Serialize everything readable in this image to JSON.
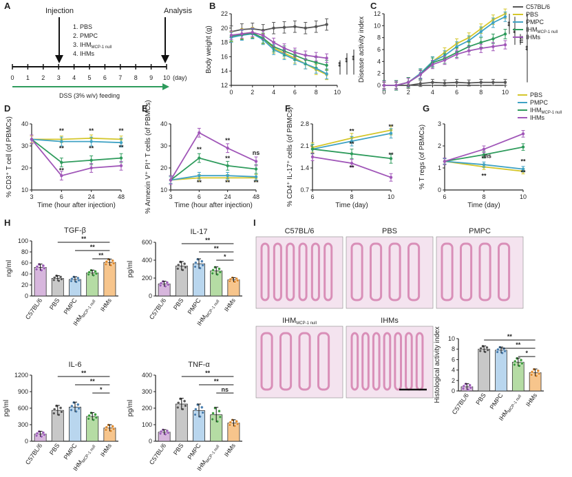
{
  "colors": {
    "C57BL/6": "#555555",
    "PBS": "#d4c62a",
    "PMPC": "#3fa2c4",
    "IHM": "#2e9b5c",
    "IHMs": "#a056b8",
    "bar_C57": "#d7b6dd",
    "bar_PBS": "#c8c8c8",
    "bar_PMPC": "#b9d6ee",
    "bar_IHM": "#b5dca4",
    "bar_IHMs": "#f7c58c",
    "dot_C57": "#9b59b6",
    "dot_PBS": "#555555",
    "dot_PMPC": "#4a7fb0",
    "dot_IHM": "#3a9b3a",
    "dot_IHMs": "#e08a2c",
    "schedule_text": "#3a4fa8",
    "dss_arrow": "#2e9b5c",
    "tissue": "#d98fb8"
  },
  "panelA": {
    "letter": "A",
    "injection": "Injection",
    "analysis": "Analysis",
    "groups": [
      "1.  PBS",
      "2.  PMPC",
      "3.  IHM",
      "4.  IHMs"
    ],
    "group3_sub": "MCP-1 null",
    "ticks": [
      "0",
      "1",
      "2",
      "3",
      "4",
      "5",
      "6",
      "7",
      "8",
      "9",
      "10"
    ],
    "unit": "(day)",
    "dss": "DSS (3% w/v) feeding"
  },
  "chart_data": [
    {
      "panel": "B",
      "type": "line",
      "xlabel": "",
      "ylabel": "Body weight (g)",
      "xlim": [
        0,
        10
      ],
      "ylim": [
        12,
        22
      ],
      "xticks": [
        "0",
        "2",
        "4",
        "6",
        "8",
        "10"
      ],
      "yticks": [
        "12",
        "14",
        "16",
        "18",
        "20",
        "22"
      ],
      "x": [
        0,
        1,
        2,
        3,
        4,
        5,
        6,
        7,
        8,
        9
      ],
      "series": [
        {
          "name": "C57BL/6",
          "color": "C57BL/6",
          "values": [
            19.5,
            19.8,
            19.9,
            19.7,
            20.0,
            20.1,
            20.2,
            20.0,
            20.2,
            20.5
          ],
          "err": 0.8
        },
        {
          "name": "PBS",
          "color": "PBS",
          "values": [
            18.8,
            19.2,
            19.4,
            18.5,
            17.2,
            16.5,
            15.8,
            15.0,
            14.2,
            13.5
          ],
          "err": 0.7
        },
        {
          "name": "PMPC",
          "color": "PMPC",
          "values": [
            18.7,
            19.0,
            19.2,
            18.4,
            17.0,
            16.3,
            15.6,
            15.0,
            14.4,
            13.6
          ],
          "err": 0.7
        },
        {
          "name": "IHM",
          "color": "IHM",
          "values": [
            18.9,
            19.1,
            19.3,
            18.6,
            17.4,
            16.8,
            16.2,
            15.6,
            15.2,
            14.8
          ],
          "err": 0.7
        },
        {
          "name": "IHMs",
          "color": "IHMs",
          "values": [
            19.0,
            19.2,
            19.4,
            19.0,
            18.0,
            17.2,
            16.6,
            16.2,
            16.0,
            15.8
          ],
          "err": 0.6
        }
      ],
      "sig": [
        "**",
        "**",
        "**"
      ]
    },
    {
      "panel": "C",
      "type": "line",
      "xlabel": "",
      "ylabel": "Disease activity index",
      "xlim": [
        0,
        10
      ],
      "ylim": [
        0,
        12
      ],
      "xticks": [
        "0",
        "2",
        "4",
        "6",
        "8",
        "10"
      ],
      "yticks": [
        "0",
        "2",
        "4",
        "6",
        "8",
        "10",
        "12"
      ],
      "x": [
        0,
        1,
        2,
        3,
        4,
        5,
        6,
        7,
        8,
        9,
        10
      ],
      "series": [
        {
          "name": "C57BL/6",
          "color": "C57BL/6",
          "values": [
            0,
            0,
            0,
            0.3,
            0.5,
            0.4,
            0.5,
            0.4,
            0.5,
            0.5,
            0.5
          ],
          "err": 0.5
        },
        {
          "name": "PBS",
          "color": "PBS",
          "values": [
            0,
            0,
            0.5,
            2,
            4,
            5.5,
            7,
            8,
            9.5,
            11,
            12
          ],
          "err": 0.8
        },
        {
          "name": "PMPC",
          "color": "PMPC",
          "values": [
            0,
            0,
            0.5,
            2,
            4,
            5,
            6.5,
            7.5,
            9,
            10.5,
            11.5
          ],
          "err": 0.8
        },
        {
          "name": "IHM",
          "color": "IHM",
          "values": [
            0,
            0,
            0.5,
            1.8,
            3.8,
            4.5,
            5.5,
            6.5,
            7.2,
            7.8,
            8.6
          ],
          "err": 0.8
        },
        {
          "name": "IHMs",
          "color": "IHMs",
          "values": [
            0,
            0,
            0.5,
            1.8,
            3.5,
            4.2,
            5.2,
            5.8,
            6.2,
            6.5,
            6.8
          ],
          "err": 0.7
        }
      ],
      "sig": [
        "**",
        "**",
        "ns",
        "**"
      ],
      "legend": [
        "C57BL/6",
        "PBS",
        "PMPC",
        "IHM",
        "IHMs"
      ],
      "legend_sub": "MCP-1 null"
    },
    {
      "panel": "D",
      "type": "line",
      "xlabel": "Time (hour after injection)",
      "ylabel": "% CD3⁺ T cell (of PBMCs)",
      "xlim": [
        0,
        3
      ],
      "ylim": [
        10,
        40
      ],
      "xticks": [
        "3",
        "6",
        "24",
        "48"
      ],
      "yticks": [
        "10",
        "20",
        "30",
        "40"
      ],
      "x": [
        0,
        1,
        2,
        3
      ],
      "series": [
        {
          "name": "PBS",
          "color": "PBS",
          "values": [
            33,
            33,
            33.5,
            33
          ],
          "err": 1.5
        },
        {
          "name": "PMPC",
          "color": "PMPC",
          "values": [
            33,
            32,
            32,
            31.5
          ],
          "err": 2
        },
        {
          "name": "IHM",
          "color": "IHM",
          "values": [
            33,
            22.5,
            23.5,
            24.5
          ],
          "err": 2
        },
        {
          "name": "IHMs",
          "color": "IHMs",
          "values": [
            33,
            16.5,
            20,
            21
          ],
          "err": 2
        }
      ],
      "sig": [
        "**",
        "**",
        "**",
        "**",
        "**",
        "**",
        "**"
      ]
    },
    {
      "panel": "E",
      "type": "line",
      "xlabel": "Time (hour after injection)",
      "ylabel": "% Annexin V⁺ PI⁺ T cells (of PBMCs)",
      "xlim": [
        0,
        3
      ],
      "ylim": [
        10,
        40
      ],
      "xticks": [
        "3",
        "6",
        "24",
        "48"
      ],
      "yticks": [
        "10",
        "20",
        "30",
        "40"
      ],
      "x": [
        0,
        1,
        2,
        3
      ],
      "series": [
        {
          "name": "PBS",
          "color": "PBS",
          "values": [
            14.5,
            15.5,
            15.5,
            15.5
          ],
          "err": 1.5
        },
        {
          "name": "PMPC",
          "color": "PMPC",
          "values": [
            14.5,
            16.5,
            16.5,
            16
          ],
          "err": 1.5
        },
        {
          "name": "IHM",
          "color": "IHM",
          "values": [
            14.5,
            24.5,
            21,
            19.5
          ],
          "err": 2
        },
        {
          "name": "IHMs",
          "color": "IHMs",
          "values": [
            14.5,
            36,
            29,
            23
          ],
          "err": 2
        }
      ],
      "sig": [
        "**",
        "**",
        "**",
        "ns",
        "**",
        "**",
        "**"
      ]
    },
    {
      "panel": "F",
      "type": "line",
      "xlabel": "Time (day)",
      "ylabel": "% CD4⁺ IL-17⁺ cells (of PBMCs)",
      "xlim": [
        0,
        2
      ],
      "ylim": [
        0.7,
        2.8
      ],
      "xticks": [
        "6",
        "8",
        "10"
      ],
      "yticks": [
        "0.7",
        "1.4",
        "2.1",
        "2.8"
      ],
      "x": [
        0,
        1,
        2
      ],
      "series": [
        {
          "name": "PBS",
          "color": "PBS",
          "values": [
            2.05,
            2.35,
            2.6
          ],
          "err": 0.15
        },
        {
          "name": "PMPC",
          "color": "PMPC",
          "values": [
            2.0,
            2.25,
            2.5
          ],
          "err": 0.15
        },
        {
          "name": "IHM",
          "color": "IHM",
          "values": [
            2.0,
            1.85,
            1.7
          ],
          "err": 0.15
        },
        {
          "name": "IHMs",
          "color": "IHMs",
          "values": [
            1.75,
            1.55,
            1.1
          ],
          "err": 0.12
        }
      ],
      "sig": [
        "**",
        "**",
        "**",
        "**",
        "**"
      ]
    },
    {
      "panel": "G",
      "type": "line",
      "xlabel": "Time (day)",
      "ylabel": "% T regs (of PBMCs)",
      "xlim": [
        0,
        2
      ],
      "ylim": [
        0,
        3
      ],
      "xticks": [
        "6",
        "8",
        "10"
      ],
      "yticks": [
        "0",
        "1",
        "2",
        "3"
      ],
      "x": [
        0,
        1,
        2
      ],
      "series": [
        {
          "name": "PBS",
          "color": "PBS",
          "values": [
            1.3,
            1.05,
            0.85
          ],
          "err": 0.12
        },
        {
          "name": "PMPC",
          "color": "PMPC",
          "values": [
            1.3,
            1.15,
            0.95
          ],
          "err": 0.12
        },
        {
          "name": "IHM",
          "color": "IHM",
          "values": [
            1.3,
            1.6,
            1.95
          ],
          "err": 0.15
        },
        {
          "name": "IHMs",
          "color": "IHMs",
          "values": [
            1.3,
            1.85,
            2.55
          ],
          "err": 0.15
        }
      ],
      "sig": [
        "**",
        "ns",
        "**",
        "**",
        "**"
      ],
      "legend": [
        "PBS",
        "PMPC",
        "IHM",
        "IHMs"
      ],
      "legend_sub": "MCP-1 null"
    },
    {
      "panel": "H1",
      "type": "bar",
      "title": "TGF-β",
      "ylabel": "ng/ml",
      "ylim": [
        0,
        100
      ],
      "yticks": [
        "0",
        "20",
        "40",
        "60",
        "80",
        "100"
      ],
      "categories": [
        "C57BL/6",
        "PBS",
        "PMPC",
        "IHM",
        "IHMs"
      ],
      "values": [
        52,
        32,
        30,
        42,
        61
      ],
      "err": [
        6,
        5,
        5,
        5,
        6
      ],
      "sig": [
        "**",
        "**",
        "**"
      ]
    },
    {
      "panel": "H2",
      "type": "bar",
      "title": "IL-17",
      "ylabel": "pg/ml",
      "ylim": [
        0,
        600
      ],
      "yticks": [
        "0",
        "200",
        "400",
        "600"
      ],
      "categories": [
        "C57BL/6",
        "PBS",
        "PMPC",
        "IHM",
        "IHMs"
      ],
      "values": [
        135,
        335,
        360,
        280,
        180
      ],
      "err": [
        30,
        50,
        55,
        45,
        25
      ],
      "sig": [
        "**",
        "**",
        "*"
      ]
    },
    {
      "panel": "H3",
      "type": "bar",
      "title": "IL-6",
      "ylabel": "pg/ml",
      "ylim": [
        0,
        1200
      ],
      "yticks": [
        "0",
        "300",
        "600",
        "900",
        "1200"
      ],
      "categories": [
        "C57BL/6",
        "PBS",
        "PMPC",
        "IHM",
        "IHMs"
      ],
      "values": [
        130,
        560,
        620,
        450,
        240
      ],
      "err": [
        50,
        90,
        90,
        70,
        60
      ],
      "sig": [
        "**",
        "**",
        "*"
      ]
    },
    {
      "panel": "H4",
      "type": "bar",
      "title": "TNF-α",
      "ylabel": "pg/ml",
      "ylim": [
        0,
        400
      ],
      "yticks": [
        "0",
        "100",
        "200",
        "300",
        "400"
      ],
      "categories": [
        "C57BL/6",
        "PBS",
        "PMPC",
        "IHM",
        "IHMs"
      ],
      "values": [
        55,
        225,
        185,
        160,
        110
      ],
      "err": [
        15,
        35,
        40,
        45,
        20
      ],
      "sig": [
        "**",
        "**",
        "ns"
      ]
    },
    {
      "panel": "I",
      "type": "bar",
      "title": "",
      "ylabel": "Histological activity index",
      "ylim": [
        0,
        10
      ],
      "yticks": [
        "0",
        "2",
        "4",
        "6",
        "8",
        "10"
      ],
      "categories": [
        "C57BL/6",
        "PBS",
        "PMPC",
        "IHM",
        "IHMs"
      ],
      "values": [
        0.8,
        8,
        7.8,
        5.5,
        3.5
      ],
      "err": [
        0.6,
        0.6,
        0.6,
        0.8,
        0.7
      ],
      "sig": [
        "**",
        "**",
        "*"
      ]
    }
  ],
  "panelI": {
    "letter": "I",
    "images": [
      "C57BL/6",
      "PBS",
      "PMPC",
      "IHM",
      "IHMs"
    ],
    "image4_sub": "MCP-1 null"
  },
  "bar_label_sub": "MCP-1 null"
}
